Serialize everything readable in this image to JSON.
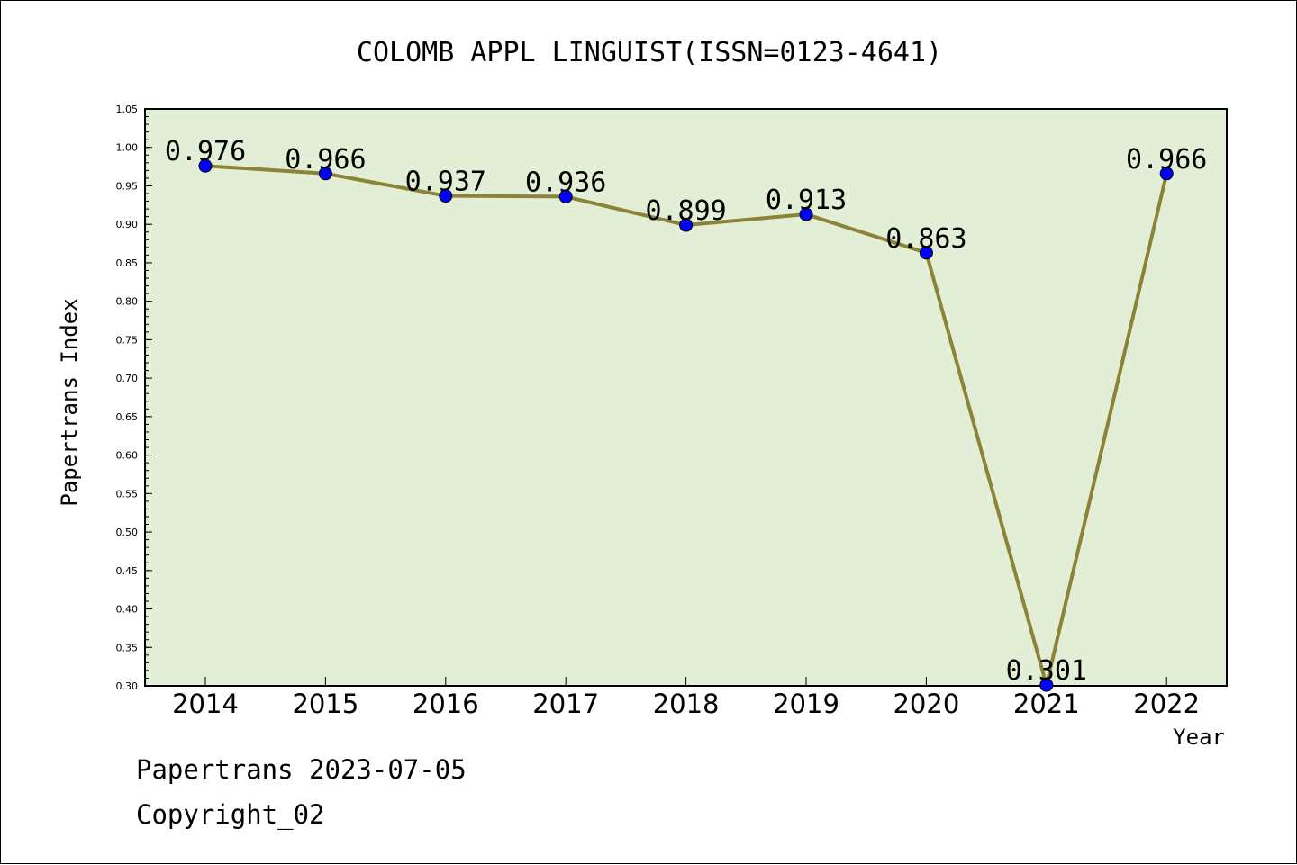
{
  "chart_data": {
    "type": "line",
    "title": "COLOMB APPL LINGUIST(ISSN=0123-4641)",
    "xlabel": "Year",
    "ylabel": "Papertrans Index",
    "categories": [
      "2014",
      "2015",
      "2016",
      "2017",
      "2018",
      "2019",
      "2020",
      "2021",
      "2022"
    ],
    "series": [
      {
        "values": [
          0.976,
          0.966,
          0.937,
          0.936,
          0.899,
          0.913,
          0.863,
          0.301,
          0.966
        ],
        "data_labels": [
          "0.976",
          "0.966",
          "0.937",
          "0.936",
          "0.899",
          "0.913",
          "0.863",
          "0.301",
          "0.966"
        ]
      }
    ],
    "ylim": [
      0.3,
      1.05
    ],
    "yticks": [
      "0.30",
      "0.35",
      "0.40",
      "0.45",
      "0.50",
      "0.55",
      "0.60",
      "0.65",
      "0.70",
      "0.75",
      "0.80",
      "0.85",
      "0.90",
      "0.95",
      "1.00",
      "1.05"
    ],
    "grid": false,
    "colors": {
      "plot_background": "#e2efd6",
      "line": "#8b8438",
      "marker": "#0000ff"
    }
  },
  "footer": {
    "line1": "Papertrans 2023-07-05",
    "line2": "Copyright_02"
  }
}
